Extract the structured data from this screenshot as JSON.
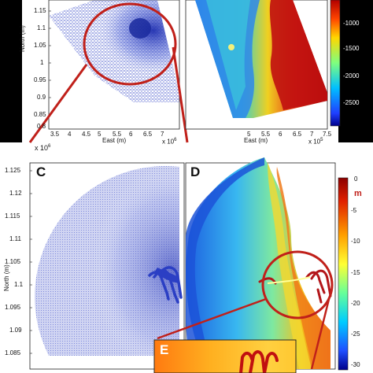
{
  "panel_a": {
    "y_title": "North (m)",
    "x_title": "East (m)",
    "y_ticks": [
      "1.15",
      "1.1",
      "1.05",
      "1",
      "0.95",
      "0.9",
      "0.85",
      "0.8"
    ],
    "x_ticks": [
      "3.5",
      "4",
      "4.5",
      "5",
      "5.5",
      "6",
      "6.5",
      "7"
    ],
    "x_exp": "x 10",
    "x_exp_power": "6",
    "y_exp": "x 10",
    "y_exp_power": "6"
  },
  "panel_b": {
    "x_title": "East (m)",
    "x_ticks": [
      "5",
      "5.5",
      "6",
      "6.5",
      "7",
      "7.5"
    ],
    "x_exp": "x 10",
    "x_exp_power": "5",
    "colorbar_ticks": [
      "-1000",
      "-1500",
      "-2000",
      "-2500"
    ]
  },
  "panel_c": {
    "label": "C",
    "y_title": "North (m)",
    "y_ticks": [
      "1.125",
      "1.12",
      "1.115",
      "1.11",
      "1.105",
      "1.1",
      "1.095",
      "1.09",
      "1.085"
    ]
  },
  "panel_d": {
    "label": "D",
    "colorbar_unit": "m",
    "colorbar_ticks": [
      "0",
      "-5",
      "-10",
      "-15",
      "-20",
      "-25",
      "-30"
    ]
  },
  "panel_e": {
    "label": "E"
  },
  "colors": {
    "mesh_blue": "#2b3fc4",
    "callout_red": "#c0201a",
    "deep_red": "#8b0000",
    "panel_black": "#000000"
  }
}
